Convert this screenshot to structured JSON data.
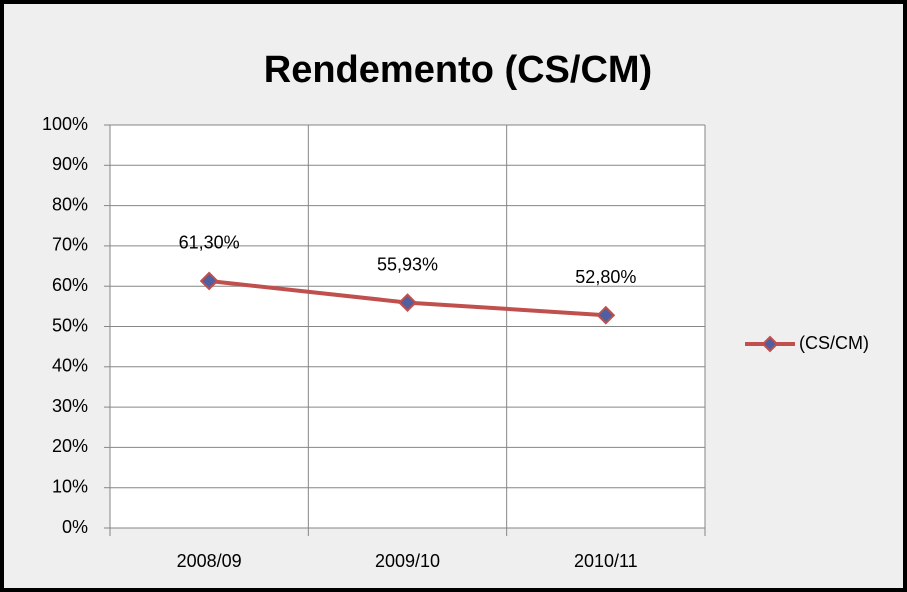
{
  "chart_data": {
    "type": "line",
    "title": "Rendemento (CS/CM)",
    "categories": [
      "2008/09",
      "2009/10",
      "2010/11"
    ],
    "series": [
      {
        "name": "(CS/CM)",
        "color": "#c0504d",
        "marker_color": "#4f5fa0",
        "values": [
          61.3,
          55.93,
          52.8
        ],
        "value_labels": [
          "61,30%",
          "55,93%",
          "52,80%"
        ]
      }
    ],
    "ylim": [
      0,
      100
    ],
    "yticks": [
      {
        "value": 0,
        "label": "0%"
      },
      {
        "value": 10,
        "label": "10%"
      },
      {
        "value": 20,
        "label": "20%"
      },
      {
        "value": 30,
        "label": "30%"
      },
      {
        "value": 40,
        "label": "40%"
      },
      {
        "value": 50,
        "label": "50%"
      },
      {
        "value": 60,
        "label": "60%"
      },
      {
        "value": 70,
        "label": "70%"
      },
      {
        "value": 80,
        "label": "80%"
      },
      {
        "value": 90,
        "label": "90%"
      },
      {
        "value": 100,
        "label": "100%"
      }
    ],
    "grid": true,
    "legend": "right"
  }
}
